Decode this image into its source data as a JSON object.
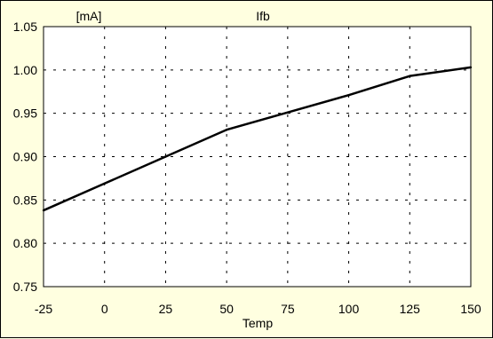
{
  "chart_data": {
    "type": "line",
    "title": "Ifb",
    "unit_label": "[mA]",
    "xlabel": "Temp",
    "ylabel": "",
    "xlim": [
      -25,
      150
    ],
    "ylim": [
      0.75,
      1.05
    ],
    "x_ticks": [
      -25,
      0,
      25,
      50,
      75,
      100,
      125,
      150
    ],
    "y_ticks": [
      0.75,
      0.8,
      0.85,
      0.9,
      0.95,
      1.0,
      1.05
    ],
    "grid": true,
    "legend": false,
    "series": [
      {
        "color": "#000000",
        "x": [
          -25,
          0,
          25,
          50,
          75,
          100,
          125,
          150
        ],
        "y": [
          0.838,
          0.869,
          0.9,
          0.931,
          0.951,
          0.971,
          0.993,
          1.003
        ]
      }
    ]
  },
  "colors": {
    "background": "#FFFFE0",
    "plot_area": "#FFFFFF",
    "line": "#000000",
    "grid": "#000000"
  }
}
